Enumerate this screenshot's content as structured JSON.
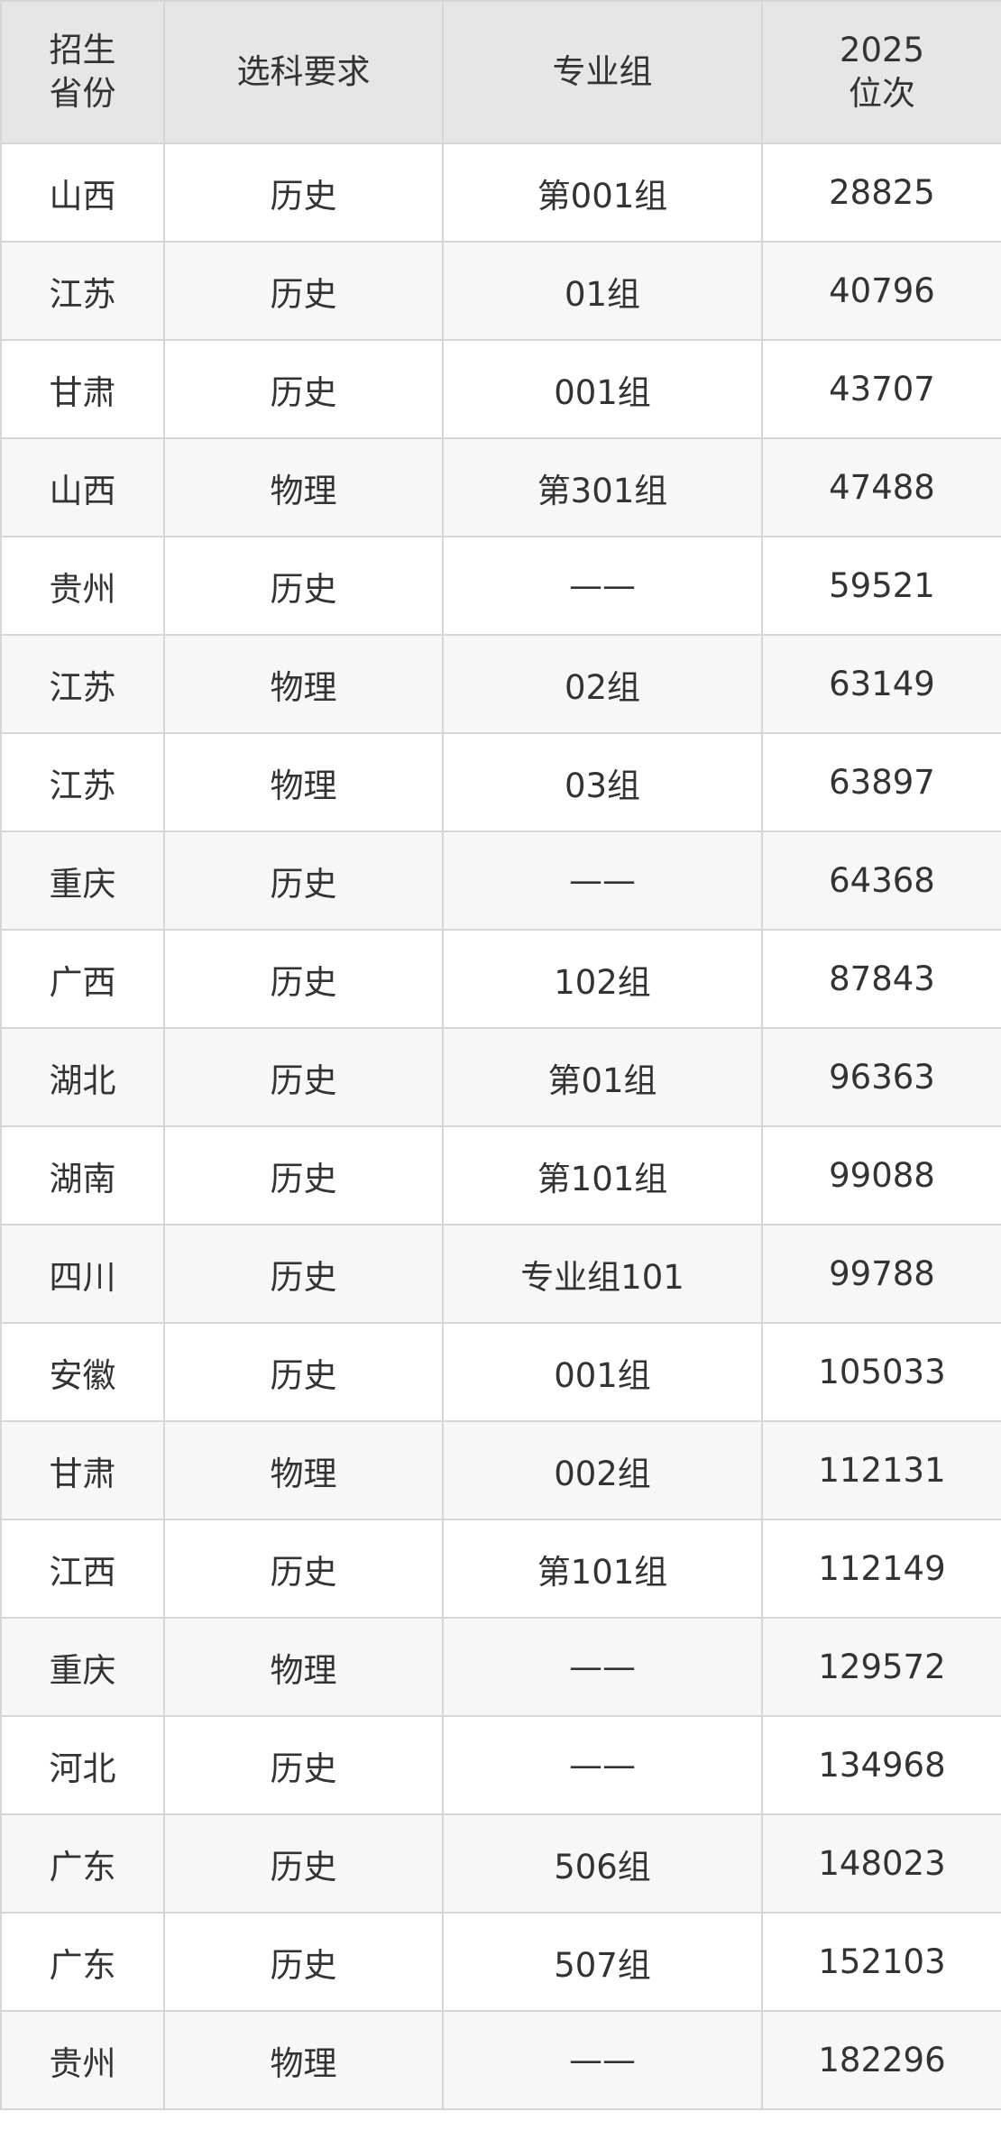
{
  "table": {
    "headers": [
      "招生\n省份",
      "选科要求",
      "专业组",
      "2025\n位次"
    ],
    "header_lines": [
      [
        "招生",
        "省份"
      ],
      [
        "选科要求"
      ],
      [
        "专业组"
      ],
      [
        "2025",
        "位次"
      ]
    ],
    "rows": [
      [
        "山西",
        "历史",
        "第001组",
        "28825"
      ],
      [
        "江苏",
        "历史",
        "01组",
        "40796"
      ],
      [
        "甘肃",
        "历史",
        "001组",
        "43707"
      ],
      [
        "山西",
        "物理",
        "第301组",
        "47488"
      ],
      [
        "贵州",
        "历史",
        "——",
        "59521"
      ],
      [
        "江苏",
        "物理",
        "02组",
        "63149"
      ],
      [
        "江苏",
        "物理",
        "03组",
        "63897"
      ],
      [
        "重庆",
        "历史",
        "——",
        "64368"
      ],
      [
        "广西",
        "历史",
        "102组",
        "87843"
      ],
      [
        "湖北",
        "历史",
        "第01组",
        "96363"
      ],
      [
        "湖南",
        "历史",
        "第101组",
        "99088"
      ],
      [
        "四川",
        "历史",
        "专业组101",
        "99788"
      ],
      [
        "安徽",
        "历史",
        "001组",
        "105033"
      ],
      [
        "甘肃",
        "物理",
        "002组",
        "112131"
      ],
      [
        "江西",
        "历史",
        "第101组",
        "112149"
      ],
      [
        "重庆",
        "物理",
        "——",
        "129572"
      ],
      [
        "河北",
        "历史",
        "——",
        "134968"
      ],
      [
        "广东",
        "历史",
        "506组",
        "148023"
      ],
      [
        "广东",
        "历史",
        "507组",
        "152103"
      ],
      [
        "贵州",
        "物理",
        "——",
        "182296"
      ]
    ]
  },
  "colors": {
    "header_bg": "#e6e6e6",
    "alt_row_bg": "#f7f7f7",
    "border": "#d6d6d6"
  }
}
